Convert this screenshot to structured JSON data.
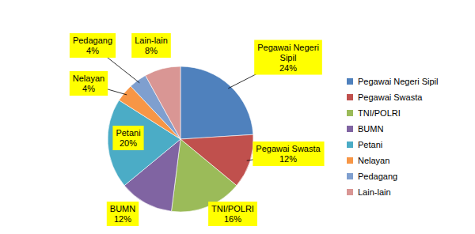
{
  "chart_data": {
    "type": "pie",
    "categories": [
      "Pegawai Negeri Sipil",
      "Pegawai Swasta",
      "TNI/POLRI",
      "BUMN",
      "Petani",
      "Nelayan",
      "Pedagang",
      "Lain-lain"
    ],
    "values": [
      24,
      12,
      16,
      12,
      20,
      4,
      4,
      8
    ],
    "value_labels": [
      "24%",
      "12%",
      "16%",
      "12%",
      "20%",
      "4%",
      "4%",
      "8%"
    ],
    "colors": [
      "#4f81bd",
      "#c0504d",
      "#9bbb59",
      "#8064a2",
      "#4bacc6",
      "#f79646",
      "#7f9fcf",
      "#d99694"
    ],
    "data_labels": true,
    "legend": "right"
  }
}
